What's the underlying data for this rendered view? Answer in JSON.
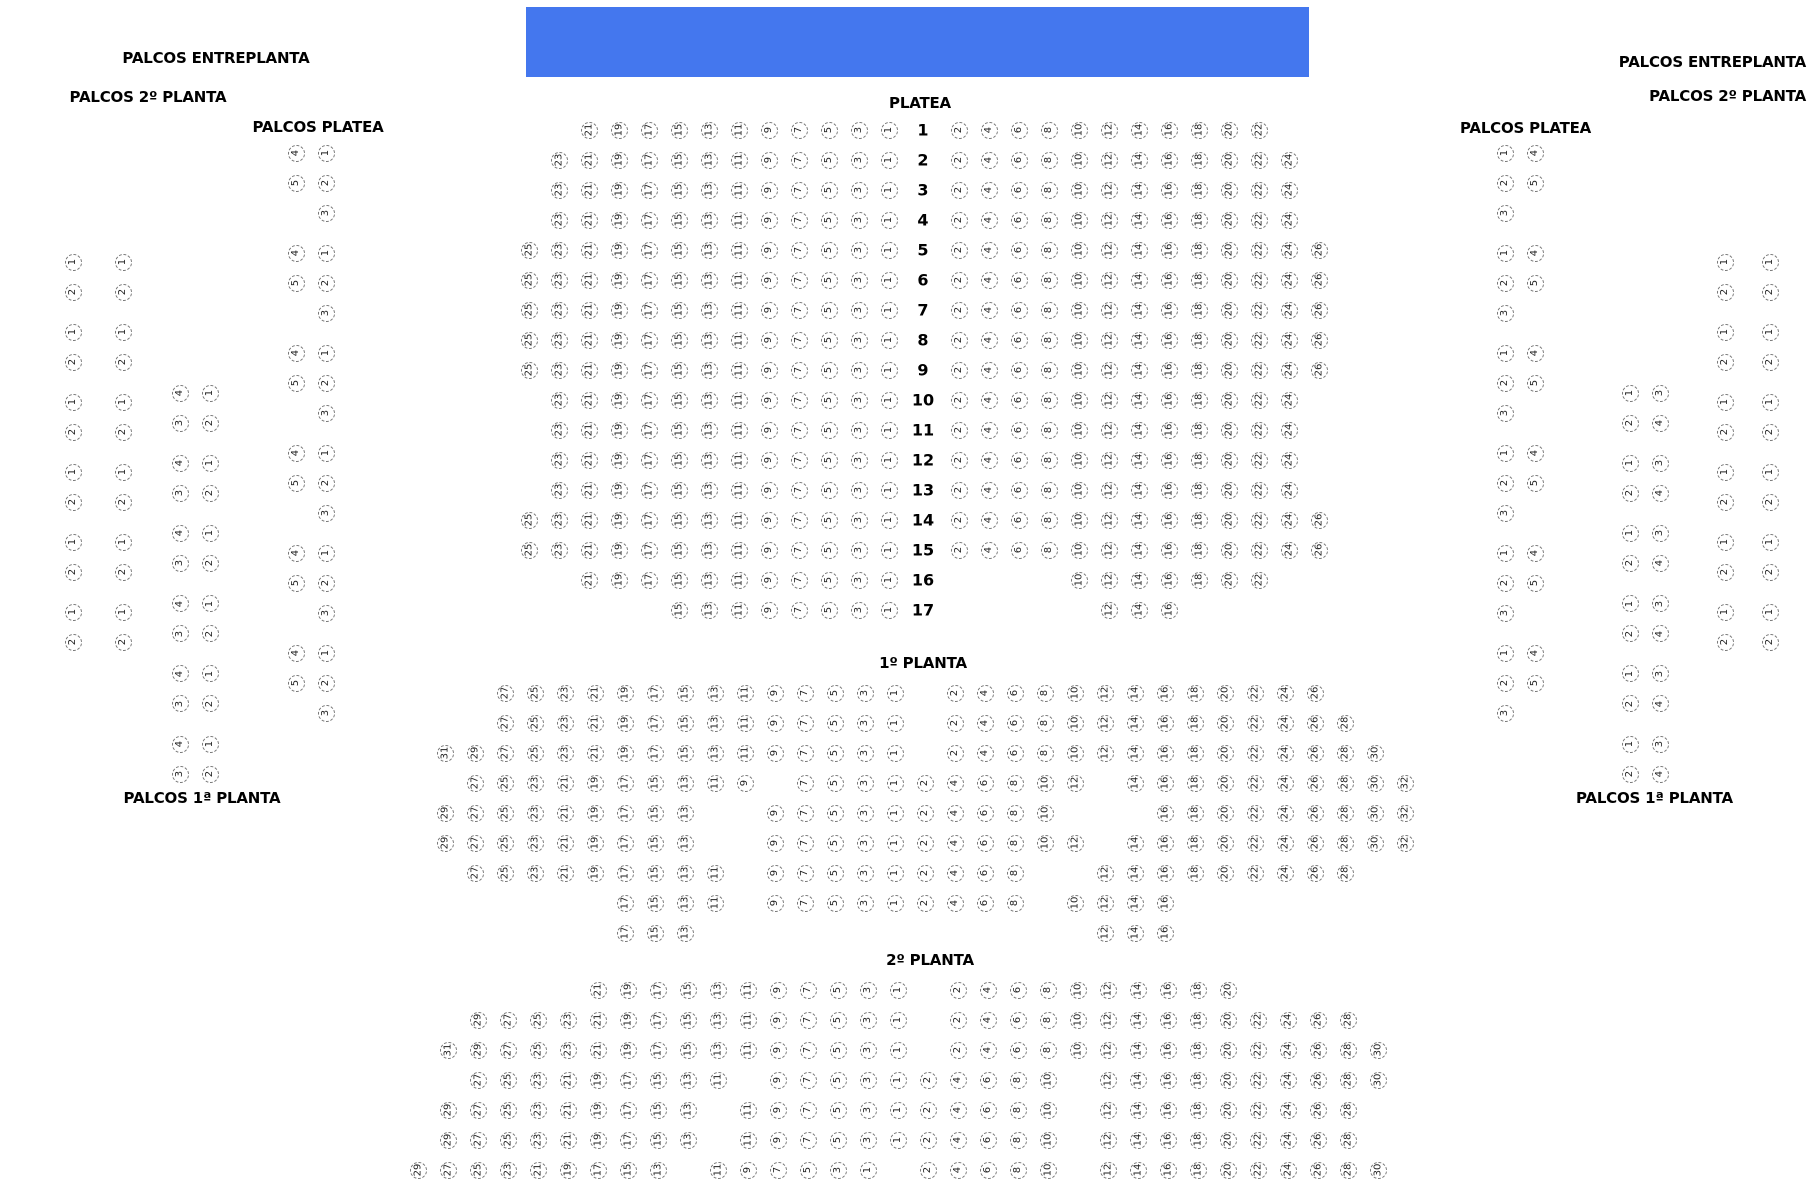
{
  "colors": {
    "stage": "#4477ee",
    "seat_border": "#777777"
  },
  "labels": {
    "platea": "PLATEA",
    "planta1": "1º PLANTA",
    "planta2": "2º PLANTA",
    "palcos_entreplanta": "PALCOS ENTREPLANTA",
    "palcos_2_planta": "PALCOS 2º PLANTA",
    "palcos_platea": "PALCOS PLATEA",
    "palcos_1_planta": "PALCOS 1ª PLANTA"
  },
  "platea": {
    "rows": [
      {
        "label": "1",
        "left": [
          21,
          19,
          17,
          15,
          13,
          11,
          9,
          7,
          5,
          3,
          1
        ],
        "right": [
          2,
          4,
          6,
          8,
          10,
          12,
          14,
          16,
          18,
          20,
          22
        ]
      },
      {
        "label": "2",
        "left": [
          23,
          21,
          19,
          17,
          15,
          13,
          11,
          9,
          7,
          5,
          3,
          1
        ],
        "right": [
          2,
          4,
          6,
          8,
          10,
          12,
          14,
          16,
          18,
          20,
          22,
          24
        ]
      },
      {
        "label": "3",
        "left": [
          23,
          21,
          19,
          17,
          15,
          13,
          11,
          9,
          7,
          5,
          3,
          1
        ],
        "right": [
          2,
          4,
          6,
          8,
          10,
          12,
          14,
          16,
          18,
          20,
          22,
          24
        ]
      },
      {
        "label": "4",
        "left": [
          23,
          21,
          19,
          17,
          15,
          13,
          11,
          9,
          7,
          5,
          3,
          1
        ],
        "right": [
          2,
          4,
          6,
          8,
          10,
          12,
          14,
          16,
          18,
          20,
          22,
          24
        ]
      },
      {
        "label": "5",
        "left": [
          25,
          23,
          21,
          19,
          17,
          15,
          13,
          11,
          9,
          7,
          5,
          3,
          1
        ],
        "right": [
          2,
          4,
          6,
          8,
          10,
          12,
          14,
          16,
          18,
          20,
          22,
          24,
          26
        ]
      },
      {
        "label": "6",
        "left": [
          25,
          23,
          21,
          19,
          17,
          15,
          13,
          11,
          9,
          7,
          5,
          3,
          1
        ],
        "right": [
          2,
          4,
          6,
          8,
          10,
          12,
          14,
          16,
          18,
          20,
          22,
          24,
          26
        ]
      },
      {
        "label": "7",
        "left": [
          25,
          23,
          21,
          19,
          17,
          15,
          13,
          11,
          9,
          7,
          5,
          3,
          1
        ],
        "right": [
          2,
          4,
          6,
          8,
          10,
          12,
          14,
          16,
          18,
          20,
          22,
          24,
          26
        ]
      },
      {
        "label": "8",
        "left": [
          25,
          23,
          21,
          19,
          17,
          15,
          13,
          11,
          9,
          7,
          5,
          3,
          1
        ],
        "right": [
          2,
          4,
          6,
          8,
          10,
          12,
          14,
          16,
          18,
          20,
          22,
          24,
          26
        ]
      },
      {
        "label": "9",
        "left": [
          25,
          23,
          21,
          19,
          17,
          15,
          13,
          11,
          9,
          7,
          5,
          3,
          1
        ],
        "right": [
          2,
          4,
          6,
          8,
          10,
          12,
          14,
          16,
          18,
          20,
          22,
          24,
          26
        ]
      },
      {
        "label": "10",
        "left": [
          23,
          21,
          19,
          17,
          15,
          13,
          11,
          9,
          7,
          5,
          3,
          1
        ],
        "right": [
          2,
          4,
          6,
          8,
          10,
          12,
          14,
          16,
          18,
          20,
          22,
          24
        ]
      },
      {
        "label": "11",
        "left": [
          23,
          21,
          19,
          17,
          15,
          13,
          11,
          9,
          7,
          5,
          3,
          1
        ],
        "right": [
          2,
          4,
          6,
          8,
          10,
          12,
          14,
          16,
          18,
          20,
          22,
          24
        ]
      },
      {
        "label": "12",
        "left": [
          23,
          21,
          19,
          17,
          15,
          13,
          11,
          9,
          7,
          5,
          3,
          1
        ],
        "right": [
          2,
          4,
          6,
          8,
          10,
          12,
          14,
          16,
          18,
          20,
          22,
          24
        ]
      },
      {
        "label": "13",
        "left": [
          23,
          21,
          19,
          17,
          15,
          13,
          11,
          9,
          7,
          5,
          3,
          1
        ],
        "right": [
          2,
          4,
          6,
          8,
          10,
          12,
          14,
          16,
          18,
          20,
          22,
          24
        ]
      },
      {
        "label": "14",
        "left": [
          25,
          23,
          21,
          19,
          17,
          15,
          13,
          11,
          9,
          7,
          5,
          3,
          1
        ],
        "right": [
          2,
          4,
          6,
          8,
          10,
          12,
          14,
          16,
          18,
          20,
          22,
          24,
          26
        ]
      },
      {
        "label": "15",
        "left": [
          25,
          23,
          21,
          19,
          17,
          15,
          13,
          11,
          9,
          7,
          5,
          3,
          1
        ],
        "right": [
          2,
          4,
          6,
          8,
          10,
          12,
          14,
          16,
          18,
          20,
          22,
          24,
          26
        ]
      },
      {
        "label": "16",
        "left": [
          21,
          19,
          17,
          15,
          13,
          11,
          9,
          7,
          5,
          3,
          1
        ],
        "right": [
          10,
          12,
          14,
          16,
          18,
          20,
          22
        ]
      },
      {
        "label": "17",
        "left": [
          15,
          13,
          11,
          9,
          7,
          5,
          3,
          1
        ],
        "right": [
          12,
          14,
          16
        ]
      }
    ]
  },
  "planta1": {
    "rows": [
      [
        null,
        null,
        27,
        25,
        23,
        21,
        19,
        17,
        15,
        13,
        11,
        9,
        7,
        5,
        3,
        1,
        null,
        2,
        4,
        6,
        8,
        10,
        12,
        14,
        16,
        18,
        20,
        22,
        24,
        26
      ],
      [
        null,
        null,
        27,
        25,
        23,
        21,
        19,
        17,
        15,
        13,
        11,
        9,
        7,
        5,
        3,
        1,
        null,
        2,
        4,
        6,
        8,
        10,
        12,
        14,
        16,
        18,
        20,
        22,
        24,
        26,
        28
      ],
      [
        31,
        29,
        27,
        25,
        23,
        21,
        19,
        17,
        15,
        13,
        11,
        9,
        7,
        5,
        3,
        1,
        null,
        2,
        4,
        6,
        8,
        10,
        12,
        14,
        16,
        18,
        20,
        22,
        24,
        26,
        28,
        30
      ],
      [
        null,
        27,
        25,
        23,
        21,
        19,
        17,
        15,
        13,
        11,
        9,
        null,
        7,
        5,
        3,
        1,
        2,
        4,
        6,
        8,
        10,
        12,
        null,
        14,
        16,
        18,
        20,
        22,
        24,
        26,
        28,
        30,
        32
      ],
      [
        29,
        27,
        25,
        23,
        21,
        19,
        17,
        15,
        13,
        null,
        null,
        9,
        7,
        5,
        3,
        1,
        2,
        4,
        6,
        8,
        10,
        null,
        null,
        null,
        16,
        18,
        20,
        22,
        24,
        26,
        28,
        30,
        32
      ],
      [
        29,
        27,
        25,
        23,
        21,
        19,
        17,
        15,
        13,
        null,
        null,
        9,
        7,
        5,
        3,
        1,
        2,
        4,
        6,
        8,
        10,
        12,
        null,
        14,
        16,
        18,
        20,
        22,
        24,
        26,
        28,
        30,
        32
      ],
      [
        null,
        27,
        25,
        23,
        21,
        19,
        17,
        15,
        13,
        11,
        null,
        9,
        7,
        5,
        3,
        1,
        2,
        4,
        6,
        8,
        null,
        null,
        12,
        14,
        16,
        18,
        20,
        22,
        24,
        26,
        28
      ],
      [
        null,
        null,
        null,
        null,
        null,
        null,
        17,
        15,
        13,
        11,
        null,
        9,
        7,
        5,
        3,
        1,
        2,
        4,
        6,
        8,
        null,
        10,
        12,
        14,
        16
      ],
      [
        null,
        null,
        null,
        null,
        null,
        null,
        17,
        15,
        13,
        null,
        null,
        null,
        null,
        null,
        null,
        null,
        null,
        null,
        null,
        null,
        null,
        null,
        12,
        14,
        16
      ]
    ]
  },
  "planta2": {
    "rows": [
      [
        null,
        null,
        null,
        null,
        null,
        null,
        21,
        19,
        17,
        15,
        13,
        11,
        9,
        7,
        5,
        3,
        1,
        null,
        2,
        4,
        6,
        8,
        10,
        12,
        14,
        16,
        18,
        20
      ],
      [
        null,
        null,
        29,
        27,
        25,
        23,
        21,
        19,
        17,
        15,
        13,
        11,
        9,
        7,
        5,
        3,
        1,
        null,
        2,
        4,
        6,
        8,
        10,
        12,
        14,
        16,
        18,
        20,
        22,
        24,
        26,
        28
      ],
      [
        null,
        31,
        29,
        27,
        25,
        23,
        21,
        19,
        17,
        15,
        13,
        11,
        9,
        7,
        5,
        3,
        1,
        null,
        2,
        4,
        6,
        8,
        10,
        12,
        14,
        16,
        18,
        20,
        22,
        24,
        26,
        28,
        30
      ],
      [
        null,
        null,
        27,
        25,
        23,
        21,
        19,
        17,
        15,
        13,
        11,
        null,
        9,
        7,
        5,
        3,
        1,
        2,
        4,
        6,
        8,
        10,
        null,
        12,
        14,
        16,
        18,
        20,
        22,
        24,
        26,
        28,
        30
      ],
      [
        null,
        29,
        27,
        25,
        23,
        21,
        19,
        17,
        15,
        13,
        null,
        11,
        9,
        7,
        5,
        3,
        1,
        2,
        4,
        6,
        8,
        10,
        null,
        12,
        14,
        16,
        18,
        20,
        22,
        24,
        26,
        28
      ],
      [
        null,
        29,
        27,
        25,
        23,
        21,
        19,
        17,
        15,
        13,
        null,
        11,
        9,
        7,
        5,
        3,
        1,
        2,
        4,
        6,
        8,
        10,
        null,
        12,
        14,
        16,
        18,
        20,
        22,
        24,
        26,
        28
      ],
      [
        29,
        27,
        25,
        23,
        21,
        19,
        17,
        15,
        13,
        null,
        11,
        9,
        7,
        5,
        3,
        1,
        null,
        2,
        4,
        6,
        8,
        10,
        null,
        12,
        14,
        16,
        18,
        20,
        22,
        24,
        26,
        28,
        30
      ]
    ]
  },
  "palcos": {
    "platea_left": {
      "boxes": 6,
      "layout": [
        [
          4,
          1
        ],
        [
          5,
          2
        ],
        [
          null,
          3
        ]
      ]
    },
    "platea_right": {
      "boxes": 6,
      "layout": [
        [
          1,
          4
        ],
        [
          2,
          5
        ],
        [
          3,
          null
        ]
      ]
    },
    "planta2_left": {
      "boxes": 6,
      "columns": 2,
      "layout": [
        [
          1
        ],
        [
          2
        ]
      ]
    },
    "planta2_right": {
      "boxes": 6,
      "columns": 2,
      "layout": [
        [
          1
        ],
        [
          2
        ]
      ]
    },
    "planta1_left": {
      "boxes": 6,
      "layout": [
        [
          4,
          1
        ],
        [
          3,
          2
        ]
      ]
    },
    "planta1_right": {
      "boxes": 6,
      "layout": [
        [
          1,
          3
        ],
        [
          2,
          4
        ]
      ]
    }
  }
}
